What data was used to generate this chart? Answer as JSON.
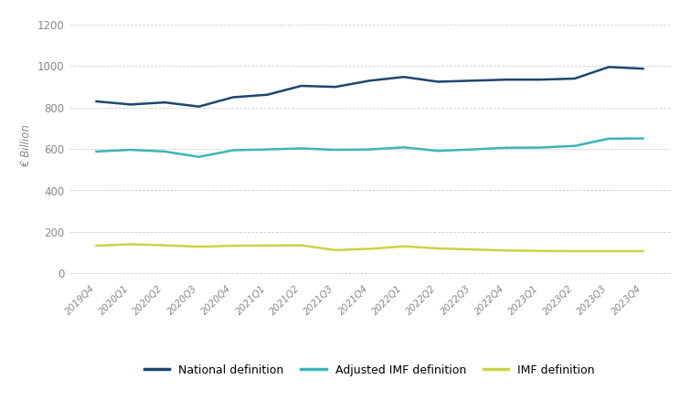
{
  "quarters": [
    "2019Q4",
    "2020Q1",
    "2020Q2",
    "2020Q3",
    "2020Q4",
    "2021Q1",
    "2021Q2",
    "2021Q3",
    "2021Q4",
    "2022Q1",
    "2022Q2",
    "2022Q3",
    "2022Q4",
    "2023Q1",
    "2023Q2",
    "2023Q3",
    "2023Q4"
  ],
  "national": [
    830,
    815,
    825,
    805,
    850,
    862,
    905,
    900,
    930,
    948,
    925,
    930,
    935,
    935,
    940,
    996,
    988
  ],
  "adjusted_imf": [
    588,
    596,
    588,
    562,
    594,
    598,
    603,
    596,
    598,
    608,
    591,
    598,
    606,
    607,
    615,
    650,
    651
  ],
  "imf": [
    133,
    140,
    135,
    128,
    133,
    134,
    135,
    112,
    118,
    130,
    120,
    115,
    110,
    108,
    107,
    107,
    107
  ],
  "national_color": "#1c4670",
  "adjusted_imf_color": "#3ab5b8",
  "imf_color": "#c8d444",
  "ylabel": "€ Billion",
  "ylim_min": -30,
  "ylim_max": 1260,
  "yticks": [
    0,
    200,
    400,
    600,
    800,
    1000,
    1200
  ],
  "legend_national": "National definition",
  "legend_adjusted": "Adjusted IMF definition",
  "legend_imf": "IMF definition",
  "background_color": "#ffffff",
  "grid_color": "#cccccc",
  "line_width": 1.8
}
